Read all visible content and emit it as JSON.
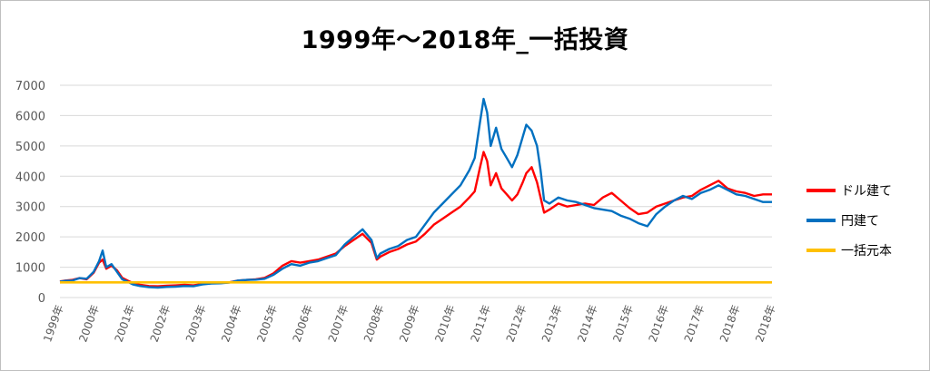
{
  "chart_data": {
    "type": "line",
    "title": "1999年～2018年_一括投資",
    "ylim": [
      0,
      7000
    ],
    "yticks": [
      0,
      1000,
      2000,
      3000,
      4000,
      5000,
      6000,
      7000
    ],
    "x_categories": [
      "1999年",
      "2000年",
      "2001年",
      "2002年",
      "2003年",
      "2004年",
      "2005年",
      "2006年",
      "2007年",
      "2008年",
      "2009年",
      "2010年",
      "2011年",
      "2012年",
      "2013年",
      "2014年",
      "2015年",
      "2016年",
      "2017年",
      "2018年",
      "2018年"
    ],
    "grid": true,
    "legend_position": "right",
    "colors": {
      "dollar": "#ff0000",
      "yen": "#0070c0",
      "principal": "#ffc000"
    },
    "series": [
      {
        "name": "ドル建て",
        "points": [
          [
            0,
            530
          ],
          [
            0.15,
            560
          ],
          [
            0.35,
            580
          ],
          [
            0.55,
            640
          ],
          [
            0.75,
            600
          ],
          [
            0.95,
            820
          ],
          [
            1.1,
            1150
          ],
          [
            1.2,
            1250
          ],
          [
            1.3,
            950
          ],
          [
            1.45,
            1050
          ],
          [
            1.6,
            900
          ],
          [
            1.75,
            650
          ],
          [
            1.9,
            560
          ],
          [
            2.05,
            480
          ],
          [
            2.25,
            420
          ],
          [
            2.5,
            380
          ],
          [
            2.75,
            370
          ],
          [
            3.0,
            390
          ],
          [
            3.25,
            400
          ],
          [
            3.5,
            420
          ],
          [
            3.75,
            400
          ],
          [
            4.0,
            450
          ],
          [
            4.25,
            470
          ],
          [
            4.5,
            480
          ],
          [
            4.75,
            500
          ],
          [
            5.0,
            560
          ],
          [
            5.25,
            580
          ],
          [
            5.5,
            600
          ],
          [
            5.75,
            650
          ],
          [
            6.0,
            800
          ],
          [
            6.25,
            1050
          ],
          [
            6.5,
            1200
          ],
          [
            6.75,
            1150
          ],
          [
            7.0,
            1200
          ],
          [
            7.25,
            1250
          ],
          [
            7.5,
            1350
          ],
          [
            7.75,
            1450
          ],
          [
            8.0,
            1700
          ],
          [
            8.25,
            1900
          ],
          [
            8.5,
            2100
          ],
          [
            8.75,
            1800
          ],
          [
            8.9,
            1250
          ],
          [
            9.0,
            1350
          ],
          [
            9.25,
            1500
          ],
          [
            9.5,
            1600
          ],
          [
            9.75,
            1750
          ],
          [
            10.0,
            1850
          ],
          [
            10.25,
            2100
          ],
          [
            10.5,
            2400
          ],
          [
            10.75,
            2600
          ],
          [
            11.0,
            2800
          ],
          [
            11.25,
            3000
          ],
          [
            11.5,
            3300
          ],
          [
            11.65,
            3500
          ],
          [
            11.8,
            4300
          ],
          [
            11.9,
            4800
          ],
          [
            12.0,
            4500
          ],
          [
            12.1,
            3700
          ],
          [
            12.25,
            4100
          ],
          [
            12.4,
            3600
          ],
          [
            12.55,
            3400
          ],
          [
            12.7,
            3200
          ],
          [
            12.85,
            3400
          ],
          [
            13.0,
            3800
          ],
          [
            13.1,
            4100
          ],
          [
            13.25,
            4300
          ],
          [
            13.4,
            3800
          ],
          [
            13.5,
            3300
          ],
          [
            13.6,
            2800
          ],
          [
            13.75,
            2900
          ],
          [
            14.0,
            3100
          ],
          [
            14.25,
            3000
          ],
          [
            14.5,
            3050
          ],
          [
            14.75,
            3100
          ],
          [
            15.0,
            3050
          ],
          [
            15.25,
            3300
          ],
          [
            15.5,
            3450
          ],
          [
            15.75,
            3200
          ],
          [
            16.0,
            2950
          ],
          [
            16.25,
            2750
          ],
          [
            16.5,
            2800
          ],
          [
            16.75,
            3000
          ],
          [
            17.0,
            3100
          ],
          [
            17.25,
            3200
          ],
          [
            17.5,
            3300
          ],
          [
            17.75,
            3350
          ],
          [
            18.0,
            3550
          ],
          [
            18.25,
            3700
          ],
          [
            18.5,
            3850
          ],
          [
            18.75,
            3600
          ],
          [
            19.0,
            3500
          ],
          [
            19.25,
            3450
          ],
          [
            19.5,
            3350
          ],
          [
            19.75,
            3400
          ],
          [
            20.0,
            3400
          ]
        ]
      },
      {
        "name": "円建て",
        "points": [
          [
            0,
            520
          ],
          [
            0.15,
            550
          ],
          [
            0.35,
            560
          ],
          [
            0.55,
            640
          ],
          [
            0.75,
            620
          ],
          [
            0.95,
            850
          ],
          [
            1.1,
            1200
          ],
          [
            1.2,
            1550
          ],
          [
            1.3,
            1000
          ],
          [
            1.45,
            1100
          ],
          [
            1.6,
            850
          ],
          [
            1.75,
            600
          ],
          [
            1.9,
            520
          ],
          [
            2.05,
            430
          ],
          [
            2.25,
            380
          ],
          [
            2.5,
            340
          ],
          [
            2.75,
            330
          ],
          [
            3.0,
            350
          ],
          [
            3.25,
            360
          ],
          [
            3.5,
            380
          ],
          [
            3.75,
            370
          ],
          [
            4.0,
            430
          ],
          [
            4.25,
            460
          ],
          [
            4.5,
            470
          ],
          [
            4.75,
            490
          ],
          [
            5.0,
            560
          ],
          [
            5.25,
            580
          ],
          [
            5.5,
            590
          ],
          [
            5.75,
            620
          ],
          [
            6.0,
            750
          ],
          [
            6.25,
            950
          ],
          [
            6.5,
            1100
          ],
          [
            6.75,
            1050
          ],
          [
            7.0,
            1150
          ],
          [
            7.25,
            1200
          ],
          [
            7.5,
            1300
          ],
          [
            7.75,
            1400
          ],
          [
            8.0,
            1750
          ],
          [
            8.25,
            2000
          ],
          [
            8.5,
            2250
          ],
          [
            8.75,
            1900
          ],
          [
            8.9,
            1300
          ],
          [
            9.0,
            1450
          ],
          [
            9.25,
            1600
          ],
          [
            9.5,
            1700
          ],
          [
            9.75,
            1900
          ],
          [
            10.0,
            2000
          ],
          [
            10.25,
            2400
          ],
          [
            10.5,
            2800
          ],
          [
            10.75,
            3100
          ],
          [
            11.0,
            3400
          ],
          [
            11.25,
            3700
          ],
          [
            11.5,
            4200
          ],
          [
            11.65,
            4600
          ],
          [
            11.8,
            5800
          ],
          [
            11.9,
            6550
          ],
          [
            12.0,
            6100
          ],
          [
            12.1,
            5000
          ],
          [
            12.25,
            5600
          ],
          [
            12.4,
            4900
          ],
          [
            12.55,
            4600
          ],
          [
            12.7,
            4300
          ],
          [
            12.85,
            4700
          ],
          [
            13.0,
            5300
          ],
          [
            13.1,
            5700
          ],
          [
            13.25,
            5500
          ],
          [
            13.4,
            5000
          ],
          [
            13.5,
            4200
          ],
          [
            13.6,
            3200
          ],
          [
            13.75,
            3100
          ],
          [
            14.0,
            3300
          ],
          [
            14.25,
            3200
          ],
          [
            14.5,
            3150
          ],
          [
            14.75,
            3050
          ],
          [
            15.0,
            2950
          ],
          [
            15.25,
            2900
          ],
          [
            15.5,
            2850
          ],
          [
            15.75,
            2700
          ],
          [
            16.0,
            2600
          ],
          [
            16.25,
            2450
          ],
          [
            16.5,
            2350
          ],
          [
            16.75,
            2750
          ],
          [
            17.0,
            3000
          ],
          [
            17.25,
            3200
          ],
          [
            17.5,
            3350
          ],
          [
            17.75,
            3250
          ],
          [
            18.0,
            3450
          ],
          [
            18.25,
            3550
          ],
          [
            18.5,
            3700
          ],
          [
            18.75,
            3550
          ],
          [
            19.0,
            3400
          ],
          [
            19.25,
            3350
          ],
          [
            19.5,
            3250
          ],
          [
            19.75,
            3150
          ],
          [
            20.0,
            3150
          ]
        ]
      },
      {
        "name": "一括元本",
        "points": [
          [
            0,
            500
          ],
          [
            20.0,
            500
          ]
        ]
      }
    ]
  }
}
